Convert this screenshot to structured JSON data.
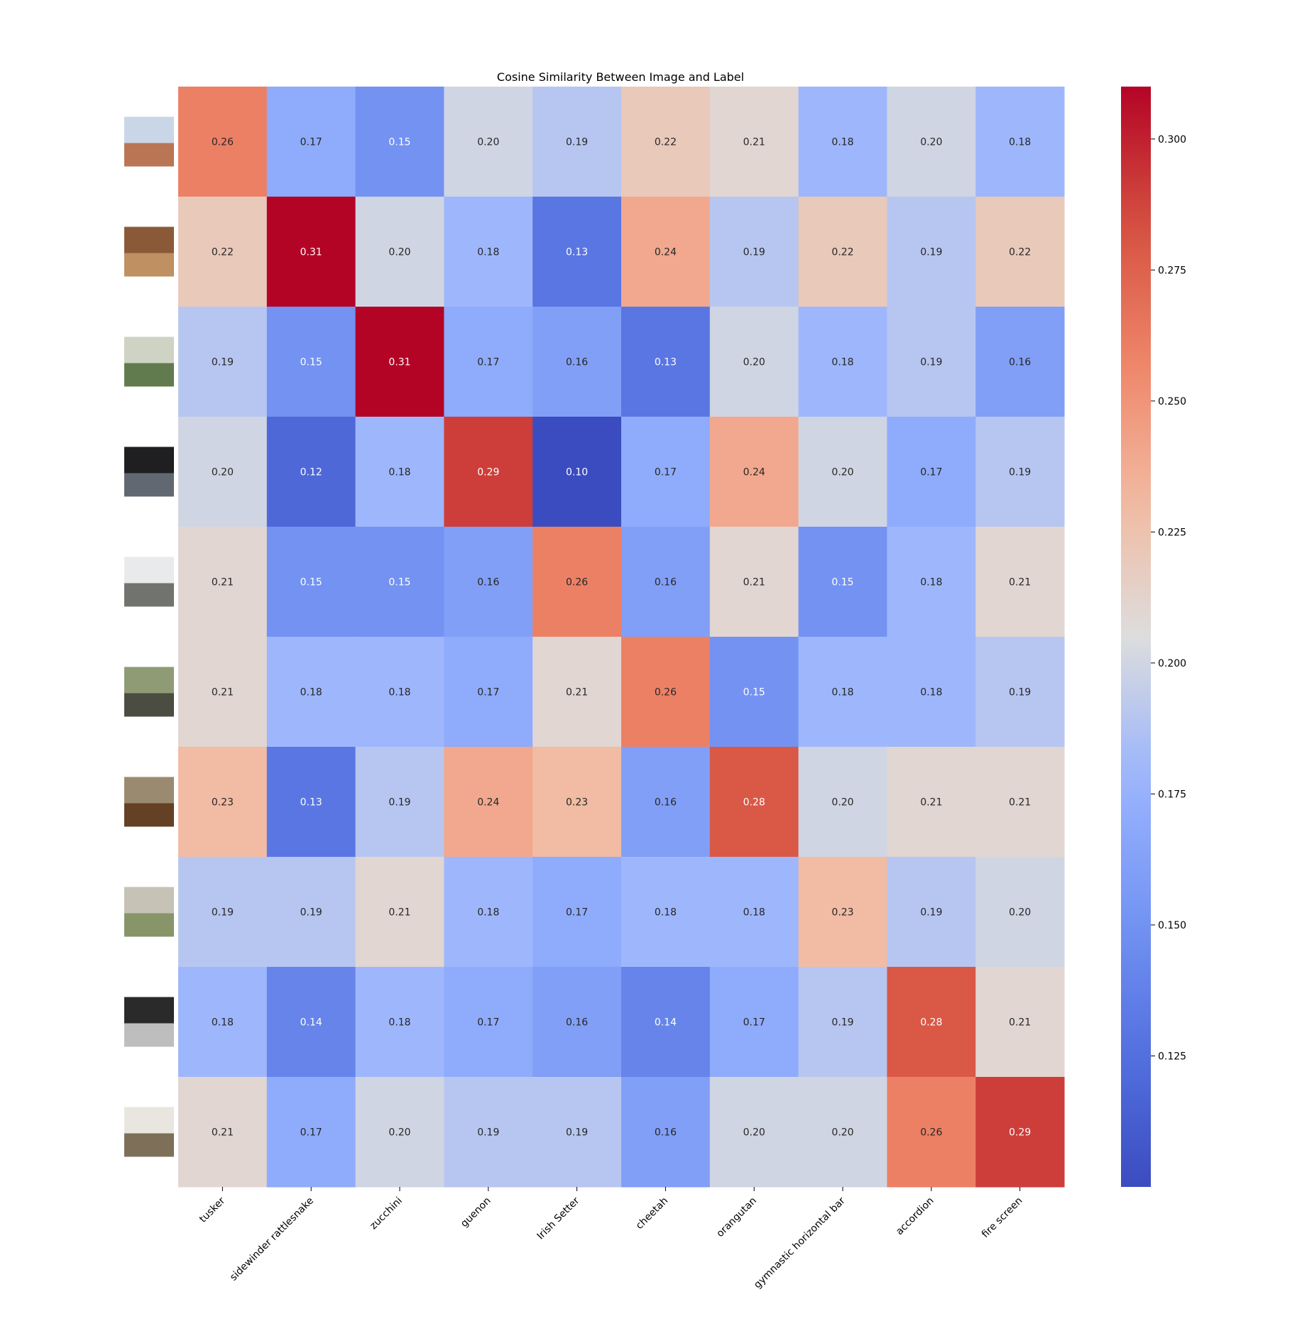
{
  "chart_data": {
    "type": "heatmap",
    "title": "Cosine Similarity Between Image and Label",
    "xlabel": "",
    "ylabel": "",
    "columns": [
      "tusker",
      "sidewinder rattlesnake",
      "zucchini",
      "guenon",
      "Irish Setter",
      "cheetah",
      "orangutan",
      "gymnastic horizontal bar",
      "accordion",
      "fire screen"
    ],
    "rows": [
      {
        "icon": "desert-landscape-thumbnail",
        "values": [
          0.26,
          0.17,
          0.15,
          0.2,
          0.19,
          0.22,
          0.21,
          0.18,
          0.2,
          0.18
        ]
      },
      {
        "icon": "rattlesnake-on-sand-thumbnail",
        "values": [
          0.22,
          0.31,
          0.2,
          0.18,
          0.13,
          0.24,
          0.19,
          0.22,
          0.19,
          0.22
        ]
      },
      {
        "icon": "zucchini-thumbnail",
        "values": [
          0.19,
          0.15,
          0.31,
          0.17,
          0.16,
          0.13,
          0.2,
          0.18,
          0.19,
          0.16
        ]
      },
      {
        "icon": "monkey-in-shadow-thumbnail",
        "values": [
          0.2,
          0.12,
          0.18,
          0.29,
          0.1,
          0.17,
          0.24,
          0.2,
          0.17,
          0.19
        ]
      },
      {
        "icon": "snowy-path-thumbnail",
        "values": [
          0.21,
          0.15,
          0.15,
          0.16,
          0.26,
          0.16,
          0.21,
          0.15,
          0.18,
          0.21
        ]
      },
      {
        "icon": "spotted-animals-thumbnail",
        "values": [
          0.21,
          0.18,
          0.18,
          0.17,
          0.21,
          0.26,
          0.15,
          0.18,
          0.18,
          0.19
        ]
      },
      {
        "icon": "orangutan-thumbnail",
        "values": [
          0.23,
          0.13,
          0.19,
          0.24,
          0.23,
          0.16,
          0.28,
          0.2,
          0.21,
          0.21
        ]
      },
      {
        "icon": "person-on-bar-thumbnail",
        "values": [
          0.19,
          0.19,
          0.21,
          0.18,
          0.17,
          0.18,
          0.18,
          0.23,
          0.19,
          0.2
        ]
      },
      {
        "icon": "accordion-player-thumbnail",
        "values": [
          0.18,
          0.14,
          0.18,
          0.17,
          0.16,
          0.14,
          0.17,
          0.19,
          0.28,
          0.21
        ]
      },
      {
        "icon": "fireplace-screen-thumbnail",
        "values": [
          0.21,
          0.17,
          0.2,
          0.19,
          0.19,
          0.16,
          0.2,
          0.2,
          0.26,
          0.29
        ]
      }
    ],
    "value_format": "0.00",
    "colormap": "coolwarm",
    "colorbar": {
      "vmin": 0.1,
      "vmax": 0.31,
      "ticks": [
        0.125,
        0.15,
        0.175,
        0.2,
        0.225,
        0.25,
        0.275,
        0.3
      ],
      "tick_labels": [
        "0.125",
        "0.150",
        "0.175",
        "0.200",
        "0.225",
        "0.250",
        "0.275",
        "0.300"
      ]
    }
  }
}
